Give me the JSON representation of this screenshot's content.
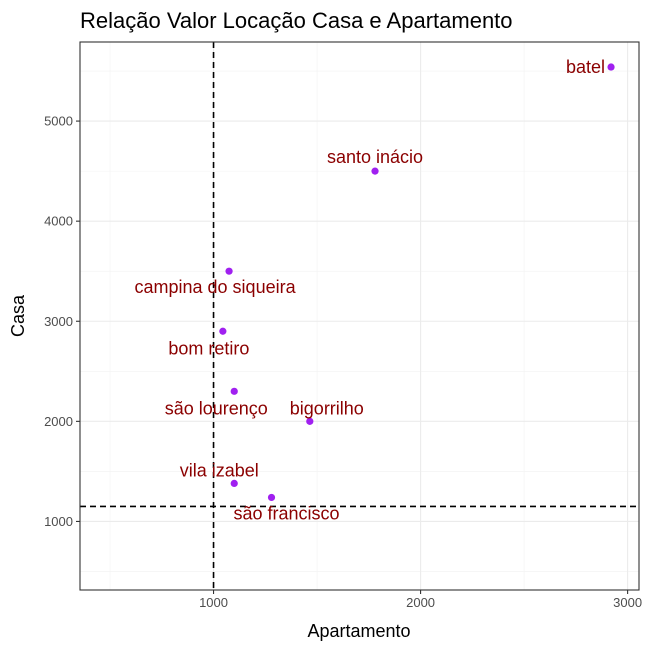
{
  "chart_data": {
    "type": "scatter",
    "title": "Relação Valor Locação Casa e Apartamento",
    "xlabel": "Apartamento",
    "ylabel": "Casa",
    "xlim": [
      355,
      3055
    ],
    "ylim": [
      315,
      5790
    ],
    "x_ticks": [
      1000,
      2000,
      3000
    ],
    "y_ticks": [
      1000,
      2000,
      3000,
      4000,
      5000
    ],
    "grid": true,
    "legend": "none",
    "reference_lines": {
      "vertical_x": 1000,
      "horizontal_y": 1150
    },
    "point_color": "#a020f0",
    "label_color": "#8b0000",
    "points": [
      {
        "label": "batel",
        "x": 2920,
        "y": 5540
      },
      {
        "label": "santo inácio",
        "x": 1780,
        "y": 4500
      },
      {
        "label": "campina do siqueira",
        "x": 1075,
        "y": 3500
      },
      {
        "label": "bom retiro",
        "x": 1045,
        "y": 2900
      },
      {
        "label": "são lourenço",
        "x": 1100,
        "y": 2300
      },
      {
        "label": "bigorrilho",
        "x": 1465,
        "y": 2000
      },
      {
        "label": "vila izabel",
        "x": 1100,
        "y": 1380
      },
      {
        "label": "são francisco",
        "x": 1280,
        "y": 1240
      }
    ]
  }
}
